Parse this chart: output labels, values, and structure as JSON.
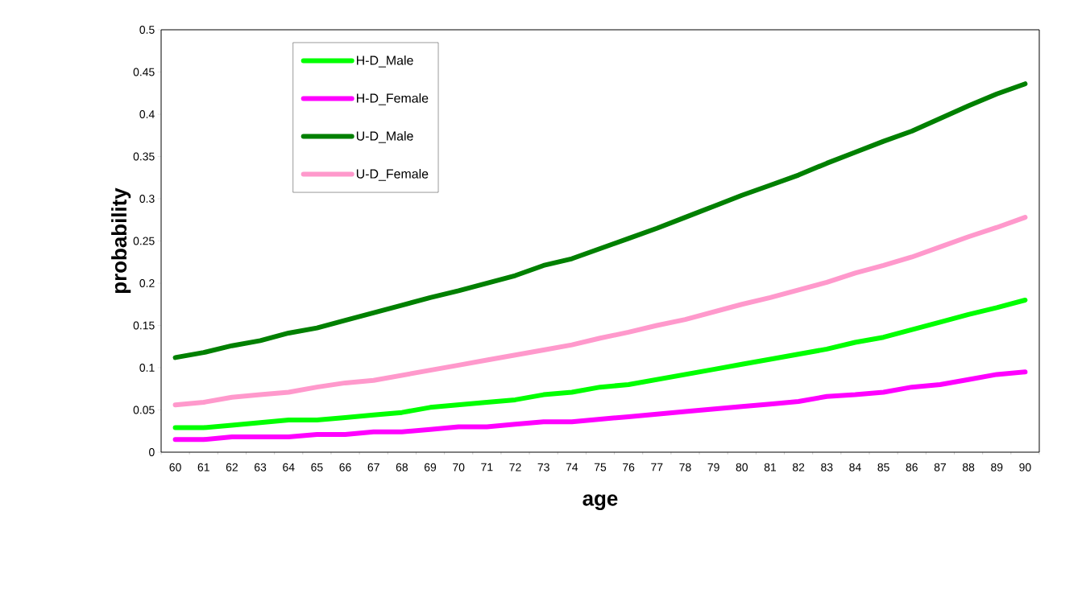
{
  "chart_data": {
    "type": "line",
    "xlabel": "age",
    "ylabel": "probability",
    "categories": [
      "60",
      "61",
      "62",
      "63",
      "64",
      "65",
      "66",
      "67",
      "68",
      "69",
      "70",
      "71",
      "72",
      "73",
      "74",
      "75",
      "76",
      "77",
      "78",
      "79",
      "80",
      "81",
      "82",
      "83",
      "84",
      "85",
      "86",
      "87",
      "88",
      "89",
      "90"
    ],
    "ylim": [
      0,
      0.5
    ],
    "yticks": [
      0,
      0.05,
      0.1,
      0.15,
      0.2,
      0.25,
      0.3,
      0.35,
      0.4,
      0.45,
      0.5
    ],
    "grid": false,
    "legend": "top left",
    "marker": "none",
    "line_style": "solid",
    "series": [
      {
        "name": "H-D_Male",
        "color": "#00ff00",
        "values": [
          0.029,
          0.029,
          0.032,
          0.035,
          0.038,
          0.038,
          0.041,
          0.044,
          0.047,
          0.053,
          0.056,
          0.059,
          0.062,
          0.068,
          0.071,
          0.077,
          0.08,
          0.086,
          0.092,
          0.098,
          0.104,
          0.11,
          0.116,
          0.122,
          0.13,
          0.136,
          0.145,
          0.154,
          0.163,
          0.171,
          0.18
        ]
      },
      {
        "name": "H-D_Female",
        "color": "#ff00ff",
        "values": [
          0.015,
          0.015,
          0.018,
          0.018,
          0.018,
          0.021,
          0.021,
          0.024,
          0.024,
          0.027,
          0.03,
          0.03,
          0.033,
          0.036,
          0.036,
          0.039,
          0.042,
          0.045,
          0.048,
          0.051,
          0.054,
          0.057,
          0.06,
          0.066,
          0.068,
          0.071,
          0.077,
          0.08,
          0.086,
          0.092,
          0.095
        ]
      },
      {
        "name": "U-D_Male",
        "color": "#008000",
        "values": [
          0.112,
          0.118,
          0.126,
          0.132,
          0.141,
          0.147,
          0.156,
          0.165,
          0.174,
          0.183,
          0.191,
          0.2,
          0.209,
          0.221,
          0.229,
          0.241,
          0.253,
          0.265,
          0.278,
          0.291,
          0.304,
          0.316,
          0.328,
          0.342,
          0.355,
          0.368,
          0.38,
          0.395,
          0.41,
          0.424,
          0.436
        ]
      },
      {
        "name": "U-D_Female",
        "color": "#ff99cc",
        "values": [
          0.056,
          0.059,
          0.065,
          0.068,
          0.071,
          0.077,
          0.082,
          0.085,
          0.091,
          0.097,
          0.103,
          0.109,
          0.115,
          0.121,
          0.127,
          0.135,
          0.142,
          0.15,
          0.157,
          0.166,
          0.175,
          0.183,
          0.192,
          0.201,
          0.212,
          0.221,
          0.231,
          0.243,
          0.255,
          0.266,
          0.278
        ]
      }
    ]
  }
}
